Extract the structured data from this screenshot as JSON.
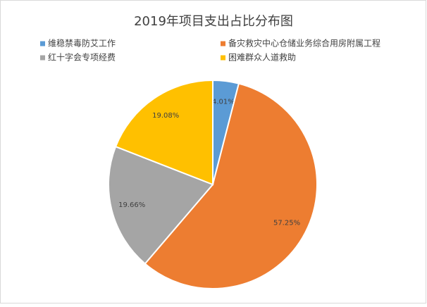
{
  "chart_data": {
    "type": "pie",
    "title": "2019年项目支出占比分布图",
    "categories": [
      "维稳禁毒防艾工作",
      "备灾救灾中心仓储业务综合用房附属工程",
      "红十字会专项经费",
      "困难群众人道救助"
    ],
    "values": [
      4.01,
      57.25,
      19.66,
      19.08
    ],
    "value_labels": [
      "4.01%",
      "57.25%",
      "19.66%",
      "19.08%"
    ],
    "colors": [
      "#5b9bd5",
      "#ed7d31",
      "#a5a5a5",
      "#ffc000"
    ],
    "legend": "top"
  }
}
